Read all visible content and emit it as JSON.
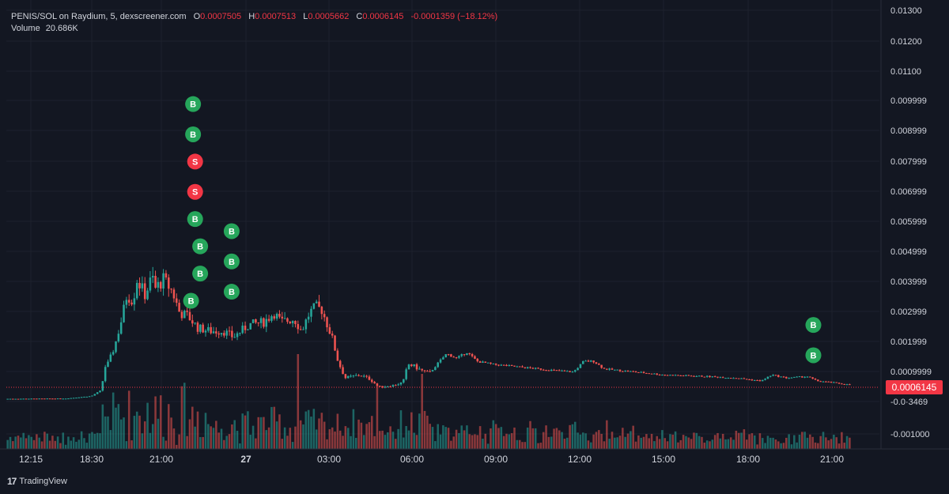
{
  "legend": {
    "symbol": "PENIS/SOL on Raydium, 5, dexscreener.com",
    "o_label": "O",
    "o_value": "0.0007505",
    "h_label": "H",
    "h_value": "0.0007513",
    "l_label": "L",
    "l_value": "0.0005662",
    "c_label": "C",
    "c_value": "0.0006145",
    "change": "-0.0001359 (−18.12%)",
    "volume_label": "Volume",
    "volume_value": "20.686K"
  },
  "branding": {
    "logo": "TradingView"
  },
  "colors": {
    "up": "#26a69a",
    "down": "#ef5350",
    "background": "#131722",
    "grid": "#1e222d",
    "text": "#d1d4dc",
    "buy": "#26a65b",
    "sell": "#f23645",
    "price_line": "#f23645"
  },
  "chart_data": {
    "type": "candlestick",
    "price_axis": {
      "ticks": [
        "0.01300",
        "0.01200",
        "0.01100",
        "0.009999",
        "0.008999",
        "0.007999",
        "0.006999",
        "0.005999",
        "0.004999",
        "0.003999",
        "0.002999",
        "0.001999",
        "0.0009999",
        "-0.0·3469",
        "-0.001000"
      ],
      "ylim": [
        -0.0012,
        0.0132
      ]
    },
    "time_axis": {
      "ticks": [
        "12:15",
        "18:30",
        "21:00",
        "27",
        "03:00",
        "06:00",
        "09:00",
        "12:00",
        "15:00",
        "18:00",
        "21:00"
      ]
    },
    "current_price": {
      "value": 0.0006145,
      "label": "0.0006145"
    },
    "price_path": [
      {
        "t": 0,
        "p": 0.00016
      },
      {
        "t": 60,
        "p": 0.00017
      },
      {
        "t": 85,
        "p": 0.00025
      },
      {
        "t": 95,
        "p": 0.00045
      },
      {
        "t": 98,
        "p": 0.0012
      },
      {
        "t": 102,
        "p": 0.00135
      },
      {
        "t": 108,
        "p": 0.0019
      },
      {
        "t": 115,
        "p": 0.0028
      },
      {
        "t": 120,
        "p": 0.0036
      },
      {
        "t": 126,
        "p": 0.0034
      },
      {
        "t": 130,
        "p": 0.0041
      },
      {
        "t": 138,
        "p": 0.0036
      },
      {
        "t": 145,
        "p": 0.0042
      },
      {
        "t": 148,
        "p": 0.0038
      },
      {
        "t": 156,
        "p": 0.0041
      },
      {
        "t": 165,
        "p": 0.0037
      },
      {
        "t": 172,
        "p": 0.003
      },
      {
        "t": 180,
        "p": 0.0029
      },
      {
        "t": 190,
        "p": 0.0025
      },
      {
        "t": 202,
        "p": 0.0024
      },
      {
        "t": 215,
        "p": 0.0024
      },
      {
        "t": 225,
        "p": 0.0022
      },
      {
        "t": 240,
        "p": 0.0026
      },
      {
        "t": 255,
        "p": 0.0027
      },
      {
        "t": 265,
        "p": 0.003
      },
      {
        "t": 272,
        "p": 0.0027
      },
      {
        "t": 285,
        "p": 0.0028
      },
      {
        "t": 292,
        "p": 0.0024
      },
      {
        "t": 300,
        "p": 0.003
      },
      {
        "t": 306,
        "p": 0.0032
      },
      {
        "t": 312,
        "p": 0.0031
      },
      {
        "t": 322,
        "p": 0.0022
      },
      {
        "t": 328,
        "p": 0.0014
      },
      {
        "t": 335,
        "p": 0.00085
      },
      {
        "t": 350,
        "p": 0.00095
      },
      {
        "t": 360,
        "p": 0.0008
      },
      {
        "t": 368,
        "p": 0.00055
      },
      {
        "t": 382,
        "p": 0.0006
      },
      {
        "t": 392,
        "p": 0.0007
      },
      {
        "t": 397,
        "p": 0.0013
      },
      {
        "t": 402,
        "p": 0.00125
      },
      {
        "t": 410,
        "p": 0.0011
      },
      {
        "t": 418,
        "p": 0.001
      },
      {
        "t": 428,
        "p": 0.0014
      },
      {
        "t": 435,
        "p": 0.00165
      },
      {
        "t": 445,
        "p": 0.0015
      },
      {
        "t": 455,
        "p": 0.0017
      },
      {
        "t": 465,
        "p": 0.0014
      },
      {
        "t": 480,
        "p": 0.0013
      },
      {
        "t": 510,
        "p": 0.0012
      },
      {
        "t": 540,
        "p": 0.0011
      },
      {
        "t": 560,
        "p": 0.00105
      },
      {
        "t": 570,
        "p": 0.0014
      },
      {
        "t": 580,
        "p": 0.0014
      },
      {
        "t": 590,
        "p": 0.00115
      },
      {
        "t": 620,
        "p": 0.00105
      },
      {
        "t": 650,
        "p": 0.00095
      },
      {
        "t": 690,
        "p": 0.0009
      },
      {
        "t": 720,
        "p": 0.00085
      },
      {
        "t": 745,
        "p": 0.00075
      },
      {
        "t": 755,
        "p": 0.00095
      },
      {
        "t": 770,
        "p": 0.00085
      },
      {
        "t": 790,
        "p": 0.0009
      },
      {
        "t": 800,
        "p": 0.00075
      },
      {
        "t": 815,
        "p": 0.0007
      },
      {
        "t": 832,
        "p": 0.00062
      }
    ],
    "candle_count": 320,
    "trade_markers": [
      {
        "label": "B",
        "kind": "buy",
        "price": 0.0099,
        "time": 145
      },
      {
        "label": "B",
        "kind": "buy",
        "price": 0.0089,
        "time": 145
      },
      {
        "label": "S",
        "kind": "sell",
        "price": 0.008,
        "time": 147
      },
      {
        "label": "S",
        "kind": "sell",
        "price": 0.007,
        "time": 147
      },
      {
        "label": "B",
        "kind": "buy",
        "price": 0.0061,
        "time": 147
      },
      {
        "label": "B",
        "kind": "buy",
        "price": 0.0052,
        "time": 152
      },
      {
        "label": "B",
        "kind": "buy",
        "price": 0.0043,
        "time": 152
      },
      {
        "label": "B",
        "kind": "buy",
        "price": 0.0034,
        "time": 143
      },
      {
        "label": "B",
        "kind": "buy",
        "price": 0.0057,
        "time": 183
      },
      {
        "label": "B",
        "kind": "buy",
        "price": 0.0047,
        "time": 183
      },
      {
        "label": "B",
        "kind": "buy",
        "price": 0.0037,
        "time": 183
      },
      {
        "label": "B",
        "kind": "buy",
        "price": 0.0026,
        "time": 756
      },
      {
        "label": "B",
        "kind": "buy",
        "price": 0.0016,
        "time": 756
      }
    ]
  }
}
